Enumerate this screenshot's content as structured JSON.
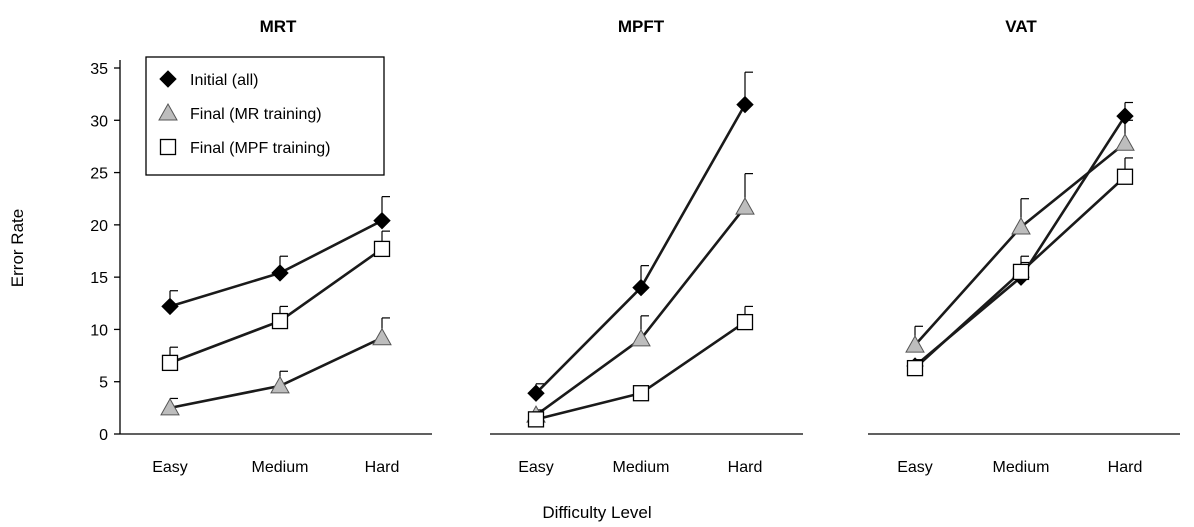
{
  "chart_data": {
    "type": "line",
    "xlabel": "Difficulty Level",
    "ylabel": "Error Rate",
    "categories": [
      "Easy",
      "Medium",
      "Hard"
    ],
    "ylim": [
      0,
      35
    ],
    "yticks": [
      0,
      5,
      10,
      15,
      20,
      25,
      30,
      35
    ],
    "legend": {
      "position": "top-left",
      "entries": [
        {
          "label": "Initial (all)",
          "marker": "diamond",
          "fill": "#000000"
        },
        {
          "label": "Final (MR training)",
          "marker": "triangle",
          "fill": "#bdbdbd"
        },
        {
          "label": "Final (MPF training)",
          "marker": "square",
          "fill": "#ffffff"
        }
      ]
    },
    "panels": [
      {
        "title": "MRT",
        "series": [
          {
            "name": "Initial (all)",
            "values": [
              12.2,
              15.4,
              20.4
            ],
            "error": [
              1.5,
              1.6,
              2.3
            ]
          },
          {
            "name": "Final (MR training)",
            "values": [
              2.5,
              4.6,
              9.2
            ],
            "error": [
              0.9,
              1.4,
              1.9
            ]
          },
          {
            "name": "Final (MPF training)",
            "values": [
              6.8,
              10.8,
              17.7
            ],
            "error": [
              1.5,
              1.4,
              1.7
            ]
          }
        ]
      },
      {
        "title": "MPFT",
        "series": [
          {
            "name": "Initial (all)",
            "values": [
              3.9,
              14.0,
              31.5
            ],
            "error": [
              0.9,
              2.1,
              3.1
            ]
          },
          {
            "name": "Final (MR training)",
            "values": [
              1.8,
              9.1,
              21.7
            ],
            "error": [
              0.5,
              2.2,
              3.2
            ]
          },
          {
            "name": "Final (MPF training)",
            "values": [
              1.4,
              3.9,
              10.7
            ],
            "error": [
              0.4,
              0.3,
              1.5
            ]
          }
        ]
      },
      {
        "title": "VAT",
        "series": [
          {
            "name": "Initial (all)",
            "values": [
              6.5,
              15.0,
              30.4
            ],
            "error": [
              0.6,
              1.4,
              1.3
            ]
          },
          {
            "name": "Final (MR training)",
            "values": [
              8.5,
              19.8,
              27.8
            ],
            "error": [
              1.8,
              2.7,
              2.2
            ]
          },
          {
            "name": "Final (MPF training)",
            "values": [
              6.3,
              15.5,
              24.6
            ],
            "error": [
              0.8,
              1.5,
              1.8
            ]
          }
        ]
      }
    ]
  }
}
